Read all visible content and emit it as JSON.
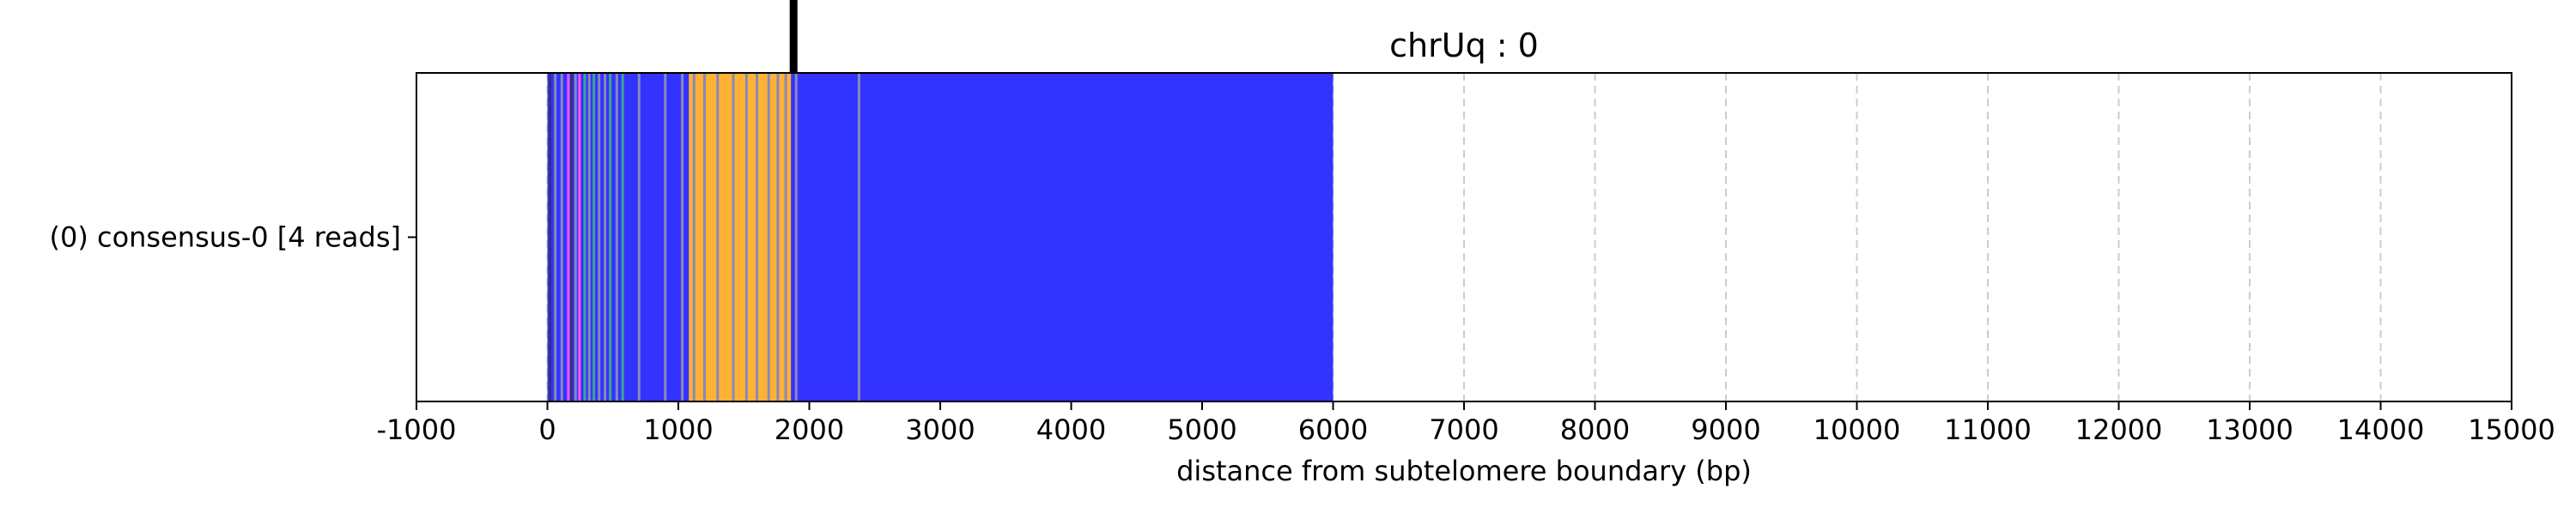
{
  "chart_data": {
    "type": "bar",
    "title": "chrUq : 0",
    "xlabel": "distance from subtelomere boundary (bp)",
    "ylabel": "",
    "xlim": [
      -1000,
      15000
    ],
    "xticks": [
      -1000,
      0,
      1000,
      2000,
      3000,
      4000,
      5000,
      6000,
      7000,
      8000,
      9000,
      10000,
      11000,
      12000,
      13000,
      14000,
      15000
    ],
    "xtick_labels": [
      "-1000",
      "0",
      "1000",
      "2000",
      "3000",
      "4000",
      "5000",
      "6000",
      "7000",
      "8000",
      "9000",
      "10000",
      "11000",
      "12000",
      "13000",
      "14000",
      "15000"
    ],
    "grid": {
      "x": true,
      "style": "dashed",
      "color": "#cccccc"
    },
    "rows": [
      {
        "label": "(0) consensus-0 [4 reads]"
      }
    ],
    "marker": {
      "x": 1880,
      "color": "#000000"
    },
    "colors": {
      "blue": "#3333ff",
      "orange": "#ffb233",
      "magenta": "#ff55ff",
      "teal": "#3fa58f",
      "dark": "#333377",
      "grey": "#8888bb"
    },
    "segments": [
      {
        "start": 0,
        "end": 6000,
        "color": "blue"
      },
      {
        "start": 1080,
        "end": 1860,
        "color": "orange"
      }
    ],
    "stripes": [
      {
        "x": 20,
        "color": "dark"
      },
      {
        "x": 60,
        "color": "grey"
      },
      {
        "x": 110,
        "color": "grey"
      },
      {
        "x": 160,
        "color": "magenta"
      },
      {
        "x": 185,
        "color": "dark"
      },
      {
        "x": 215,
        "color": "grey"
      },
      {
        "x": 245,
        "color": "magenta"
      },
      {
        "x": 285,
        "color": "teal"
      },
      {
        "x": 320,
        "color": "grey"
      },
      {
        "x": 355,
        "color": "teal"
      },
      {
        "x": 395,
        "color": "grey"
      },
      {
        "x": 440,
        "color": "grey"
      },
      {
        "x": 480,
        "color": "teal"
      },
      {
        "x": 530,
        "color": "grey"
      },
      {
        "x": 575,
        "color": "teal"
      },
      {
        "x": 700,
        "color": "grey"
      },
      {
        "x": 900,
        "color": "grey"
      },
      {
        "x": 1030,
        "color": "grey"
      },
      {
        "x": 1120,
        "color": "grey"
      },
      {
        "x": 1200,
        "color": "grey"
      },
      {
        "x": 1300,
        "color": "grey"
      },
      {
        "x": 1420,
        "color": "grey"
      },
      {
        "x": 1520,
        "color": "grey"
      },
      {
        "x": 1600,
        "color": "grey"
      },
      {
        "x": 1690,
        "color": "grey"
      },
      {
        "x": 1760,
        "color": "grey"
      },
      {
        "x": 1820,
        "color": "grey"
      },
      {
        "x": 1900,
        "color": "grey"
      },
      {
        "x": 2380,
        "color": "grey"
      }
    ]
  }
}
